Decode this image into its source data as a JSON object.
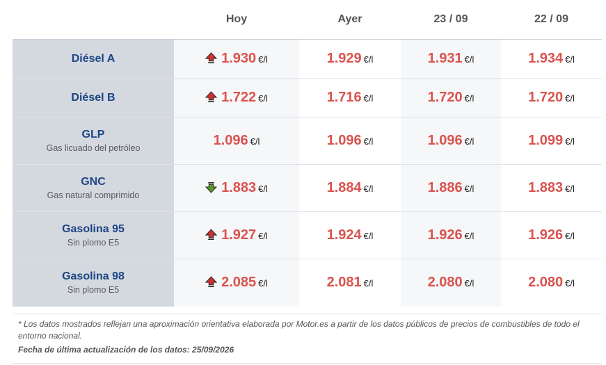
{
  "columns": [
    "",
    "Hoy",
    "Ayer",
    "23 / 09",
    "22 / 09"
  ],
  "unit": "€/l",
  "colors": {
    "price": "#d9534f",
    "fuel_name": "#1d4584",
    "up_arrow": "#d0302f",
    "down_arrow": "#5a9a2a"
  },
  "rows": [
    {
      "name": "Diésel A",
      "sub": "",
      "trend": "up",
      "prices": [
        "1.930",
        "1.929",
        "1.931",
        "1.934"
      ]
    },
    {
      "name": "Diésel B",
      "sub": "",
      "trend": "up",
      "prices": [
        "1.722",
        "1.716",
        "1.720",
        "1.720"
      ]
    },
    {
      "name": "GLP",
      "sub": "Gas licuado del petróleo",
      "trend": "none",
      "prices": [
        "1.096",
        "1.096",
        "1.096",
        "1.099"
      ]
    },
    {
      "name": "GNC",
      "sub": "Gas natural comprimido",
      "trend": "down",
      "prices": [
        "1.883",
        "1.884",
        "1.886",
        "1.883"
      ]
    },
    {
      "name": "Gasolina 95",
      "sub": "Sin plomo E5",
      "trend": "up",
      "prices": [
        "1.927",
        "1.924",
        "1.926",
        "1.926"
      ]
    },
    {
      "name": "Gasolina 98",
      "sub": "Sin plomo E5",
      "trend": "up",
      "prices": [
        "2.085",
        "2.081",
        "2.080",
        "2.080"
      ]
    }
  ],
  "note": "* Los datos mostrados reflejan una aproximación orientativa elaborada por Motor.es a partir de los datos públicos de precios de combustibles de todo el entorno nacional.",
  "updated": "Fecha de última actualización de los datos: 25/09/2026"
}
